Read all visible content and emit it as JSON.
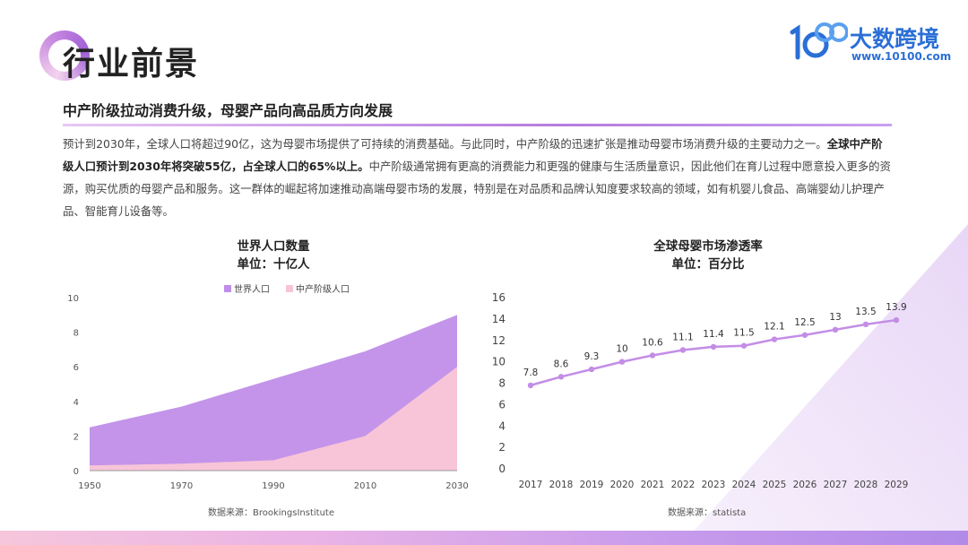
{
  "header": {
    "title": "行业前景",
    "logo_name": "大数跨境",
    "logo_url": "www.10100.com"
  },
  "colors": {
    "accent_purple": "#c08ee8",
    "accent_pink": "#f8c4d8",
    "line_purple": "#c38de6",
    "brand_blue": "#2b6fd6"
  },
  "subtitle": "中产阶级拉动消费升级，母婴产品向高品质方向发展",
  "paragraph": {
    "part1": "预计到2030年，全球人口将超过90亿，这为母婴市场提供了可持续的消费基础。与此同时，中产阶级的迅速扩张是推动母婴市场消费升级的主要动力之一。",
    "bold": "全球中产阶级人口预计到2030年将突破55亿，占全球人口的65%以上。",
    "part2": "中产阶级通常拥有更高的消费能力和更强的健康与生活质量意识，因此他们在育儿过程中愿意投入更多的资源，购买优质的母婴产品和服务。这一群体的崛起将加速推动高端母婴市场的发展，特别是在对品质和品牌认知度要求较高的领域，如有机婴儿食品、高端婴幼儿护理产品、智能育儿设备等。"
  },
  "chart_data": [
    {
      "type": "area",
      "title": "世界人口数量",
      "subtitle": "单位：十亿人",
      "x": [
        1950,
        1970,
        1990,
        2010,
        2030
      ],
      "series": [
        {
          "name": "世界人口",
          "values": [
            2.5,
            3.7,
            5.3,
            6.9,
            9.0
          ]
        },
        {
          "name": "中产阶级人口",
          "values": [
            0.3,
            0.4,
            0.6,
            2.0,
            6.0
          ]
        }
      ],
      "ylim": [
        0,
        10
      ],
      "yticks": [
        0,
        2,
        4,
        6,
        8,
        10
      ],
      "legend": "top",
      "source": "数据来源：BrookingsInstitute"
    },
    {
      "type": "line",
      "title": "全球母婴市场渗透率",
      "subtitle": "单位：百分比",
      "x": [
        "2017",
        "2018",
        "2019",
        "2020",
        "2021",
        "2022",
        "2023",
        "2024",
        "2025",
        "2026",
        "2027",
        "2028",
        "2029"
      ],
      "values": [
        7.8,
        8.6,
        9.3,
        10,
        10.6,
        11.1,
        11.4,
        11.5,
        12.1,
        12.5,
        13,
        13.5,
        13.9
      ],
      "labels": [
        "7.8",
        "8.6",
        "9.3",
        "10",
        "10.6",
        "11.1",
        "11.4",
        "11.5",
        "12.1",
        "12.5",
        "13",
        "13.5",
        "13.9"
      ],
      "ylim": [
        0,
        16
      ],
      "yticks": [
        0,
        2,
        4,
        6,
        8,
        10,
        12,
        14,
        16
      ],
      "source": "数据来源：statista"
    }
  ]
}
